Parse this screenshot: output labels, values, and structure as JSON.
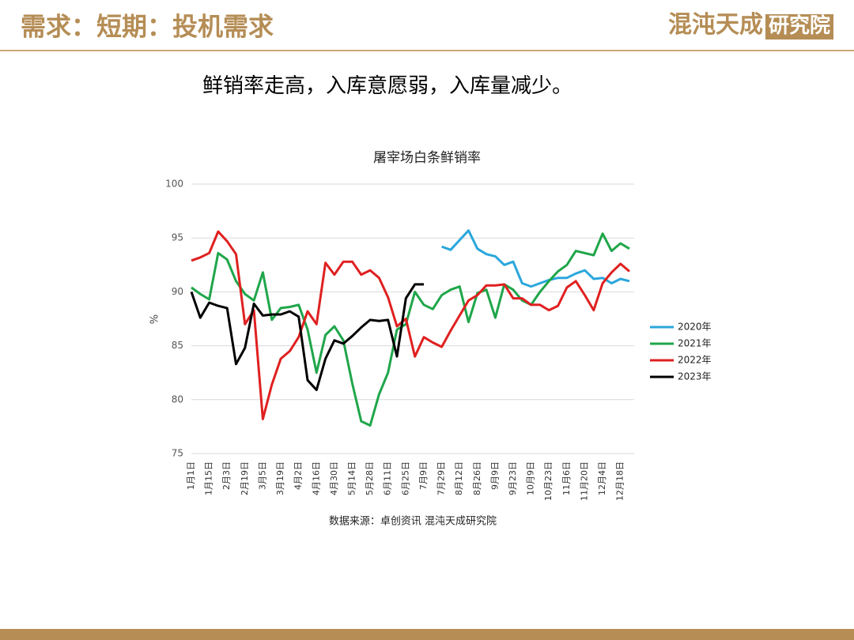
{
  "header": {
    "title": "需求：短期：投机需求",
    "logo_main": "混沌天成",
    "logo_box": "研究院"
  },
  "subtitle": "鲜销率走高，入库意愿弱，入库量减少。",
  "chart_data": {
    "type": "line",
    "title": "屠宰场白条鲜销率",
    "y_label": "%",
    "source": "数据来源：卓创资讯 混沌天成研究院",
    "categories": [
      "1月1日",
      null,
      "1月15日",
      null,
      "2月3日",
      null,
      "2月19日",
      null,
      "3月5日",
      null,
      "3月19日",
      null,
      "4月2日",
      null,
      "4月16日",
      null,
      "4月30日",
      null,
      "5月14日",
      null,
      "5月28日",
      null,
      "6月11日",
      null,
      "6月25日",
      null,
      "7月9日",
      null,
      "7月29日",
      null,
      "8月12日",
      null,
      "8月26日",
      null,
      "9月9日",
      null,
      "9月23日",
      null,
      "10月9日",
      null,
      "10月23日",
      null,
      "11月6日",
      null,
      "11月20日",
      null,
      "12月4日",
      null,
      "12月18日",
      null
    ],
    "series": [
      {
        "name": "2020年",
        "color": "#2aa7dc",
        "values": [
          null,
          null,
          null,
          null,
          null,
          null,
          null,
          null,
          null,
          null,
          null,
          null,
          null,
          null,
          null,
          null,
          null,
          null,
          null,
          null,
          null,
          null,
          null,
          null,
          null,
          null,
          null,
          null,
          94.2,
          93.9,
          94.8,
          95.7,
          94.0,
          93.5,
          93.3,
          92.5,
          92.8,
          90.8,
          90.5,
          90.8,
          91.1,
          91.3,
          91.3,
          91.7,
          92.0,
          91.2,
          91.3,
          90.8,
          91.2,
          91.0
        ]
      },
      {
        "name": "2021年",
        "color": "#1fa64a",
        "values": [
          90.4,
          89.8,
          89.3,
          93.6,
          93.0,
          91.0,
          89.8,
          89.2,
          91.8,
          87.4,
          88.5,
          88.6,
          88.8,
          86.5,
          82.5,
          86.0,
          86.8,
          85.5,
          81.5,
          78.0,
          77.6,
          80.5,
          82.5,
          86.5,
          87.0,
          90.0,
          88.8,
          88.4,
          89.7,
          90.2,
          90.5,
          87.2,
          89.9,
          90.2,
          87.6,
          90.7,
          90.2,
          89.2,
          88.8,
          90.0,
          91.0,
          91.9,
          92.5,
          93.8,
          93.6,
          93.4,
          95.4,
          93.8,
          94.5,
          94.0
        ]
      },
      {
        "name": "2022年",
        "color": "#e02020",
        "values": [
          92.9,
          93.2,
          93.6,
          95.6,
          94.7,
          93.5,
          87.0,
          88.3,
          78.2,
          81.4,
          83.8,
          84.5,
          85.8,
          88.2,
          87.0,
          92.7,
          91.6,
          92.8,
          92.8,
          91.6,
          92.0,
          91.3,
          89.5,
          86.8,
          87.5,
          84.0,
          85.8,
          85.3,
          84.9,
          86.4,
          87.8,
          89.2,
          89.7,
          90.6,
          90.6,
          90.7,
          89.4,
          89.4,
          88.8,
          88.8,
          88.3,
          88.7,
          90.4,
          91.0,
          89.7,
          88.3,
          90.8,
          91.8,
          92.6,
          91.9
        ]
      },
      {
        "name": "2023年",
        "color": "#000000",
        "values": [
          90.0,
          87.6,
          89.0,
          88.7,
          88.5,
          83.3,
          84.8,
          88.9,
          87.8,
          87.9,
          87.9,
          88.2,
          87.7,
          81.8,
          80.9,
          83.8,
          85.5,
          85.2,
          85.9,
          86.7,
          87.4,
          87.3,
          87.4,
          84.0,
          89.4,
          90.7,
          90.7,
          null,
          null,
          null,
          null,
          null,
          null,
          null,
          null,
          null,
          null,
          null,
          null,
          null,
          null,
          null,
          null,
          null,
          null,
          null,
          null,
          null,
          null,
          null
        ]
      }
    ],
    "ylim": [
      75,
      100
    ],
    "yticks": [
      75,
      80,
      85,
      90,
      95,
      100
    ],
    "grid": true,
    "legend": "right"
  }
}
